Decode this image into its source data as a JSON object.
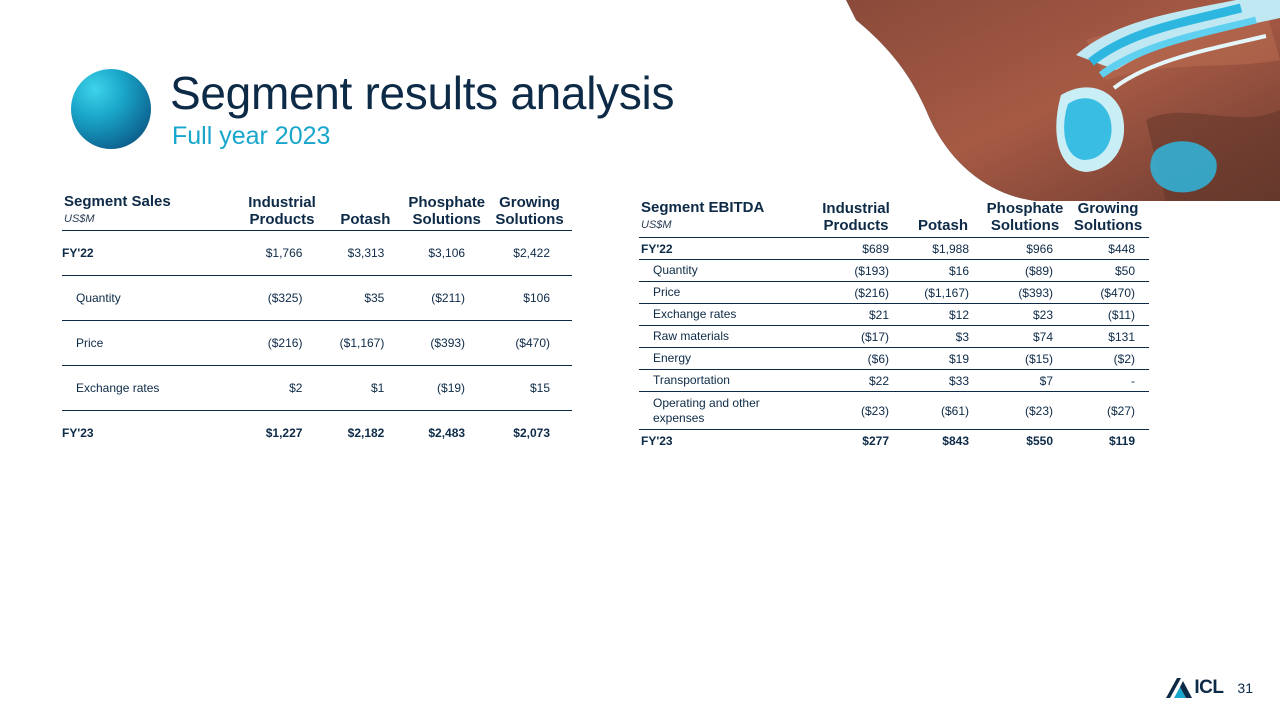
{
  "title": "Segment results analysis",
  "subtitle": "Full year 2023",
  "colors": {
    "navy": "#0d2a47",
    "accent": "#18a6cc"
  },
  "sales_table": {
    "title": "Segment Sales",
    "unit": "US$M",
    "columns": [
      "Industrial Products",
      "Potash",
      "Phosphate Solutions",
      "Growing Solutions"
    ],
    "rows": [
      {
        "label": "FY'22",
        "values": [
          "$1,766",
          "$3,313",
          "$3,106",
          "$2,422"
        ]
      },
      {
        "label": "Quantity",
        "values": [
          "($325)",
          "$35",
          "($211)",
          "$106"
        ]
      },
      {
        "label": "Price",
        "values": [
          "($216)",
          "($1,167)",
          "($393)",
          "($470)"
        ]
      },
      {
        "label": "Exchange rates",
        "values": [
          "$2",
          "$1",
          "($19)",
          "$15"
        ]
      },
      {
        "label": "FY'23",
        "values": [
          "$1,227",
          "$2,182",
          "$2,483",
          "$2,073"
        ]
      }
    ]
  },
  "ebitda_table": {
    "title": "Segment EBITDA",
    "unit": "US$M",
    "columns": [
      "Industrial Products",
      "Potash",
      "Phosphate Solutions",
      "Growing Solutions"
    ],
    "rows": [
      {
        "label": "FY'22",
        "values": [
          "$689",
          "$1,988",
          "$966",
          "$448"
        ]
      },
      {
        "label": "Quantity",
        "values": [
          "($193)",
          "$16",
          "($89)",
          "$50"
        ]
      },
      {
        "label": "Price",
        "values": [
          "($216)",
          "($1,167)",
          "($393)",
          "($470)"
        ]
      },
      {
        "label": "Exchange rates",
        "values": [
          "$21",
          "$12",
          "$23",
          "($11)"
        ]
      },
      {
        "label": "Raw materials",
        "values": [
          "($17)",
          "$3",
          "$74",
          "$131"
        ]
      },
      {
        "label": "Energy",
        "values": [
          "($6)",
          "$19",
          "($15)",
          "($2)"
        ]
      },
      {
        "label": "Transportation",
        "values": [
          "$22",
          "$33",
          "$7",
          "-"
        ]
      },
      {
        "label": "Operating and other expenses",
        "values": [
          "($23)",
          "($61)",
          "($23)",
          "($27)"
        ]
      },
      {
        "label": "FY'23",
        "values": [
          "$277",
          "$843",
          "$550",
          "$119"
        ]
      }
    ]
  },
  "logo_text": "ICL",
  "page_number": "31"
}
